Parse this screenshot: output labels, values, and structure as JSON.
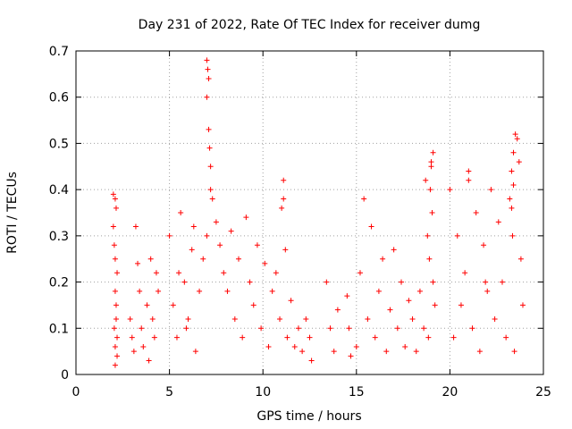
{
  "chart_data": {
    "type": "scatter",
    "title": "Day 231 of 2022, Rate Of TEC Index for receiver dumg",
    "xlabel": "GPS time / hours",
    "ylabel": "ROTI / TECUs",
    "xlim": [
      0,
      25
    ],
    "ylim": [
      0,
      0.7
    ],
    "x_ticks": [
      0,
      5,
      10,
      15,
      20,
      25
    ],
    "x_tick_labels": [
      "0",
      "5",
      "10",
      "15",
      "20",
      "25"
    ],
    "y_ticks": [
      0,
      0.1,
      0.2,
      0.3,
      0.4,
      0.5,
      0.6,
      0.7
    ],
    "y_tick_labels": [
      "0",
      "0.1",
      "0.2",
      "0.3",
      "0.4",
      "0.5",
      "0.6",
      "0.7"
    ],
    "grid": true,
    "marker": "+",
    "color": "#ff0000",
    "series": [
      {
        "name": "ROTI",
        "x": [
          2.0,
          2.0,
          2.05,
          2.1,
          2.1,
          2.15,
          2.2,
          2.2,
          2.1,
          2.15,
          2.05,
          2.1,
          2.2,
          2.15,
          2.1,
          2.9,
          3.0,
          3.2,
          3.4,
          3.1,
          3.3,
          3.5,
          3.6,
          3.8,
          4.0,
          4.2,
          4.4,
          3.9,
          4.1,
          4.3,
          5.0,
          5.2,
          5.4,
          5.6,
          5.8,
          6.0,
          6.2,
          6.4,
          5.5,
          5.9,
          6.3,
          6.6,
          6.8,
          7.0,
          7.2,
          7.0,
          7.05,
          7.1,
          7.0,
          7.1,
          7.15,
          7.2,
          7.3,
          7.5,
          7.7,
          7.9,
          8.1,
          8.3,
          8.5,
          8.7,
          8.9,
          9.1,
          9.3,
          9.5,
          9.7,
          9.9,
          10.1,
          10.3,
          10.5,
          10.7,
          10.9,
          11.1,
          11.3,
          11.5,
          11.7,
          11.0,
          11.1,
          11.2,
          11.9,
          12.1,
          12.3,
          12.5,
          12.6,
          13.4,
          13.6,
          13.8,
          14.0,
          14.5,
          14.6,
          14.7,
          15.0,
          15.2,
          15.4,
          15.6,
          15.8,
          16.0,
          16.2,
          16.4,
          16.6,
          16.8,
          17.0,
          17.2,
          17.4,
          17.6,
          17.8,
          18.0,
          18.2,
          18.4,
          18.6,
          18.7,
          18.8,
          18.9,
          19.0,
          19.1,
          19.2,
          18.95,
          19.05,
          19.1,
          18.85,
          19.0,
          20.0,
          20.2,
          20.4,
          20.6,
          20.8,
          21.0,
          21.2,
          21.4,
          21.6,
          21.8,
          22.0,
          22.2,
          22.4,
          22.6,
          22.8,
          23.0,
          23.2,
          23.3,
          23.4,
          23.5,
          23.6,
          23.7,
          23.8,
          23.9,
          23.3,
          23.4,
          23.35,
          23.45,
          21.0,
          21.9
        ],
        "y": [
          0.39,
          0.32,
          0.28,
          0.25,
          0.18,
          0.12,
          0.08,
          0.04,
          0.02,
          0.15,
          0.1,
          0.06,
          0.22,
          0.36,
          0.38,
          0.12,
          0.08,
          0.32,
          0.18,
          0.05,
          0.24,
          0.1,
          0.06,
          0.15,
          0.25,
          0.08,
          0.18,
          0.03,
          0.12,
          0.22,
          0.3,
          0.15,
          0.08,
          0.35,
          0.2,
          0.12,
          0.27,
          0.05,
          0.22,
          0.1,
          0.32,
          0.18,
          0.25,
          0.3,
          0.4,
          0.68,
          0.66,
          0.64,
          0.6,
          0.53,
          0.49,
          0.45,
          0.38,
          0.33,
          0.28,
          0.22,
          0.18,
          0.31,
          0.12,
          0.25,
          0.08,
          0.34,
          0.2,
          0.15,
          0.28,
          0.1,
          0.24,
          0.06,
          0.18,
          0.22,
          0.12,
          0.42,
          0.08,
          0.16,
          0.06,
          0.36,
          0.38,
          0.27,
          0.1,
          0.05,
          0.12,
          0.08,
          0.03,
          0.2,
          0.1,
          0.05,
          0.14,
          0.17,
          0.1,
          0.04,
          0.06,
          0.22,
          0.38,
          0.12,
          0.32,
          0.08,
          0.18,
          0.25,
          0.05,
          0.14,
          0.27,
          0.1,
          0.2,
          0.06,
          0.16,
          0.12,
          0.05,
          0.18,
          0.1,
          0.42,
          0.3,
          0.25,
          0.45,
          0.48,
          0.15,
          0.4,
          0.35,
          0.2,
          0.08,
          0.46,
          0.4,
          0.08,
          0.3,
          0.15,
          0.22,
          0.42,
          0.1,
          0.35,
          0.05,
          0.28,
          0.18,
          0.4,
          0.12,
          0.33,
          0.2,
          0.08,
          0.38,
          0.44,
          0.48,
          0.52,
          0.51,
          0.46,
          0.25,
          0.15,
          0.36,
          0.41,
          0.3,
          0.05,
          0.44,
          0.2
        ]
      }
    ]
  }
}
